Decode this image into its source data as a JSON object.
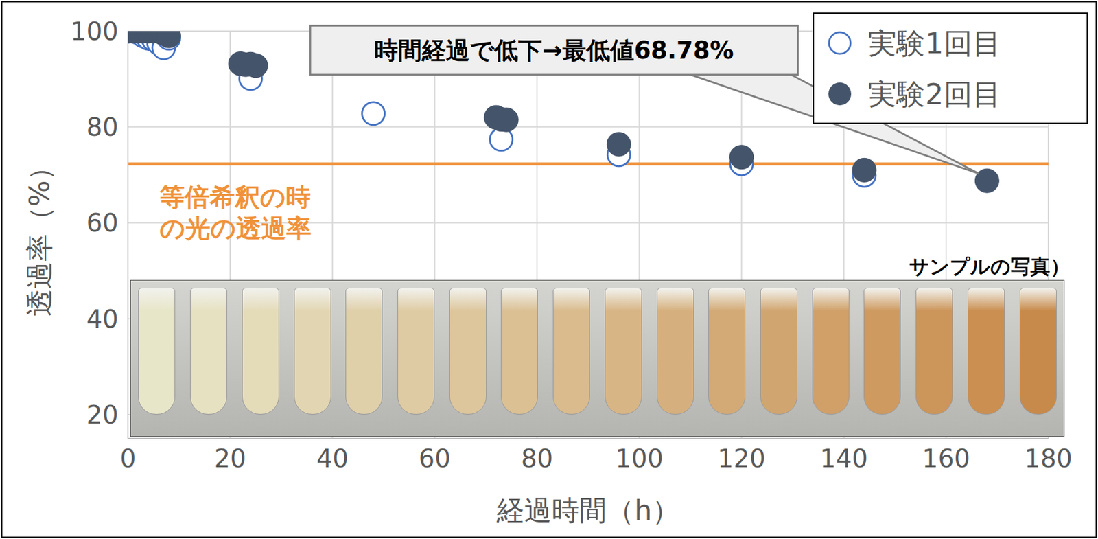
{
  "chart_data": {
    "type": "scatter",
    "xlabel": "経過時間（h）",
    "ylabel": "透過率（%）",
    "x": [
      0,
      1,
      2,
      3,
      4,
      5,
      6,
      7,
      8,
      22,
      23,
      24,
      25,
      48,
      72,
      73,
      74,
      96,
      120,
      144,
      168
    ],
    "series": [
      {
        "name": "実験1回目",
        "color": "#4472c4",
        "marker": "open_circle",
        "values": [
          100,
          100,
          99.7,
          99,
          98.5,
          98.2,
          97.5,
          96.5,
          98.5,
          null,
          null,
          90.1,
          null,
          82.8,
          null,
          77.4,
          null,
          74.2,
          72.3,
          69.9,
          null
        ]
      },
      {
        "name": "実験2回目",
        "color": "#44546a",
        "marker": "circle",
        "values": [
          100,
          100,
          100,
          100,
          100,
          100,
          100,
          99.5,
          99,
          93.2,
          93.0,
          93.1,
          92.8,
          null,
          82.0,
          81.6,
          81.5,
          76.4,
          73.7,
          71.0,
          68.78
        ]
      }
    ],
    "xlim": [
      0,
      180
    ],
    "xticks": [
      0,
      20,
      40,
      60,
      80,
      100,
      120,
      140,
      160,
      180
    ],
    "ylim": [
      15,
      100
    ],
    "yticks": [
      20,
      40,
      60,
      80,
      100
    ],
    "grid": true,
    "legend": "top-right",
    "reference_line": {
      "value": 72.3,
      "label": "等倍希釈の時の光の透過率",
      "color": "#f0923a"
    },
    "annotation": {
      "text": "時間経過で低下→最低値68.78%",
      "x": 168,
      "y": 68.78
    },
    "image_caption": "サンプルの写真）"
  }
}
